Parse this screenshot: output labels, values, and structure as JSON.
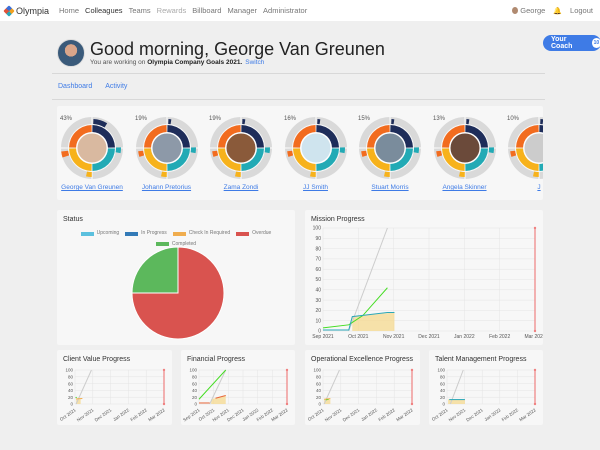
{
  "nav": {
    "brand": "Olympia",
    "items": [
      {
        "label": "Home"
      },
      {
        "label": "Colleagues",
        "active": true
      },
      {
        "label": "Teams"
      },
      {
        "label": "Rewards",
        "disabled": true
      },
      {
        "label": "Billboard"
      },
      {
        "label": "Manager"
      },
      {
        "label": "Administrator"
      }
    ],
    "user": "George",
    "logout": "Logout"
  },
  "coach": {
    "label": "Your Coach",
    "count": "10"
  },
  "header": {
    "greeting": "Good morning, George Van Greunen",
    "working_prefix": "You are working on",
    "goal": "Olympia Company Goals 2021.",
    "switch": "Switch"
  },
  "tabs": [
    {
      "label": "Dashboard"
    },
    {
      "label": "Activity"
    }
  ],
  "people": [
    {
      "name": "George Van Greunen",
      "score": "43%",
      "photo": "#d9b9a0"
    },
    {
      "name": "Johann Pretorius",
      "score": "19%",
      "photo": "#8d99a8"
    },
    {
      "name": "Zama Zondi",
      "score": "19%",
      "photo": "#8a5a3a"
    },
    {
      "name": "JJ Smith",
      "score": "16%",
      "photo": "#cfe4ee"
    },
    {
      "name": "Stuart Morris",
      "score": "15%",
      "photo": "#7a8c9c"
    },
    {
      "name": "Angela Skinner",
      "score": "13%",
      "photo": "#6b4a3a"
    },
    {
      "name": "J",
      "score": "10%",
      "photo": "#ccc"
    }
  ],
  "ring_colors": {
    "orange": "#f26c1f",
    "navy": "#1e2d5a",
    "teal": "#22aab5",
    "yellow": "#f7b21b",
    "grey": "#d9d9d9"
  },
  "status": {
    "title": "Status",
    "chart_data": {
      "type": "pie",
      "legend": [
        {
          "label": "Upcoming",
          "color": "#5bc0de"
        },
        {
          "label": "In Progress",
          "color": "#337ab7"
        },
        {
          "label": "Check In Required",
          "color": "#f0ad4e"
        },
        {
          "label": "Overdue",
          "color": "#d9534f"
        },
        {
          "label": "Completed",
          "color": "#5cb85c"
        }
      ],
      "slices": [
        {
          "label": "Overdue",
          "value": 75,
          "color": "#d9534f"
        },
        {
          "label": "Completed",
          "value": 25,
          "color": "#5cb85c"
        }
      ]
    }
  },
  "charts": [
    {
      "title": "Mission Progress",
      "chart_data": {
        "type": "line",
        "ylim": [
          0,
          100
        ],
        "yticks": [
          0,
          10,
          20,
          30,
          40,
          50,
          60,
          70,
          80,
          90,
          100
        ],
        "xticks": [
          "Sep 2021",
          "Oct 2021",
          "Nov 2021",
          "Dec 2021",
          "Jan 2022",
          "Feb 2022",
          "Mar 2022"
        ],
        "xrange": [
          "2021-09-01",
          "2022-03-01"
        ],
        "area": {
          "x": [
            "2021-09-26",
            "2021-09-26",
            "2021-11-01",
            "2021-11-01"
          ],
          "y": [
            0,
            14,
            18,
            0
          ]
        },
        "series": [
          {
            "color": "#cccccc",
            "x": [
              "2021-09-23",
              "2021-10-26"
            ],
            "y": [
              0,
              100
            ]
          },
          {
            "color": "#44dd22",
            "x": [
              "2021-09-01",
              "2021-09-23",
              "2021-10-05",
              "2021-10-26"
            ],
            "y": [
              3,
              6,
              15,
              42
            ]
          },
          {
            "color": "#2aa7b8",
            "x": [
              "2021-09-01",
              "2021-09-23",
              "2021-09-26",
              "2021-10-26",
              "2021-11-01"
            ],
            "y": [
              1,
              1,
              14,
              18,
              18
            ]
          }
        ],
        "deadline": "2022-03-01"
      }
    },
    {
      "title": "Client Value Progress",
      "chart_data": {
        "type": "line",
        "ylim": [
          0,
          100
        ],
        "yticks": [
          0,
          20,
          40,
          60,
          80,
          100
        ],
        "xticks": [
          "Oct 2021",
          "Nov 2021",
          "Dec 2021",
          "Jan 2022",
          "Feb 2022",
          "Mar 2022"
        ],
        "xrange": [
          "2021-09-25",
          "2022-03-01"
        ],
        "area": {
          "x": [
            "2021-09-27",
            "2021-09-27",
            "2021-10-05",
            "2021-10-05"
          ],
          "y": [
            0,
            16,
            16,
            0
          ]
        },
        "series": [
          {
            "color": "#cccccc",
            "x": [
              "2021-09-27",
              "2021-10-24"
            ],
            "y": [
              0,
              100
            ]
          },
          {
            "color": "#44dd22",
            "x": [
              "2021-09-26",
              "2021-09-28"
            ],
            "y": [
              18,
              20
            ]
          },
          {
            "color": "#f0ad4e",
            "x": [
              "2021-09-27",
              "2021-10-08"
            ],
            "y": [
              15,
              16
            ]
          }
        ],
        "deadline": "2022-03-01"
      }
    },
    {
      "title": "Financial Progress",
      "chart_data": {
        "type": "line",
        "ylim": [
          0,
          100
        ],
        "yticks": [
          0,
          20,
          40,
          60,
          80,
          100
        ],
        "xticks": [
          "Sep 2021",
          "Oct 2021",
          "Nov 2021",
          "Dec 2021",
          "Jan 2022",
          "Feb 2022",
          "Mar 2022"
        ],
        "xrange": [
          "2021-09-01",
          "2022-03-01"
        ],
        "area": {
          "x": [
            "2021-09-26",
            "2021-09-26",
            "2021-10-26",
            "2021-10-26"
          ],
          "y": [
            0,
            14,
            25,
            0
          ]
        },
        "series": [
          {
            "color": "#cccccc",
            "x": [
              "2021-09-23",
              "2021-10-26"
            ],
            "y": [
              0,
              100
            ]
          },
          {
            "color": "#44dd22",
            "x": [
              "2021-09-01",
              "2021-10-26"
            ],
            "y": [
              14,
              100
            ]
          },
          {
            "color": "#e8673a",
            "x": [
              "2021-09-01",
              "2021-09-23"
            ],
            "y": [
              3,
              3
            ]
          },
          {
            "color": "#e8673a",
            "x": [
              "2021-10-05",
              "2021-10-26"
            ],
            "y": [
              17,
              25
            ]
          }
        ],
        "deadline": "2022-03-01"
      }
    },
    {
      "title": "Operational Excellence Progress",
      "chart_data": {
        "type": "line",
        "ylim": [
          0,
          100
        ],
        "yticks": [
          0,
          20,
          40,
          60,
          80,
          100
        ],
        "xticks": [
          "Oct 2021",
          "Nov 2021",
          "Dec 2021",
          "Jan 2022",
          "Feb 2022",
          "Mar 2022"
        ],
        "xrange": [
          "2021-09-25",
          "2022-03-01"
        ],
        "area": {
          "x": [
            "2021-09-27",
            "2021-09-27",
            "2021-10-08",
            "2021-10-08"
          ],
          "y": [
            0,
            14,
            16,
            0
          ]
        },
        "series": [
          {
            "color": "#cccccc",
            "x": [
              "2021-09-27",
              "2021-10-24"
            ],
            "y": [
              0,
              100
            ]
          },
          {
            "color": "#44dd22",
            "x": [
              "2021-09-30",
              "2021-10-05"
            ],
            "y": [
              12,
              14
            ]
          },
          {
            "color": "#f0ad4e",
            "x": [
              "2021-09-27",
              "2021-10-08"
            ],
            "y": [
              14,
              16
            ]
          }
        ],
        "deadline": "2022-03-01"
      }
    },
    {
      "title": "Talent Management Progress",
      "chart_data": {
        "type": "line",
        "ylim": [
          0,
          100
        ],
        "yticks": [
          0,
          20,
          40,
          60,
          80,
          100
        ],
        "xticks": [
          "Oct 2021",
          "Nov 2021",
          "Dec 2021",
          "Jan 2022",
          "Feb 2022",
          "Mar 2022"
        ],
        "xrange": [
          "2021-09-25",
          "2022-03-01"
        ],
        "area": {
          "x": [
            "2021-09-27",
            "2021-09-27",
            "2021-10-27",
            "2021-10-27"
          ],
          "y": [
            0,
            14,
            14,
            0
          ]
        },
        "series": [
          {
            "color": "#cccccc",
            "x": [
              "2021-10-01",
              "2021-10-24"
            ],
            "y": [
              0,
              100
            ]
          },
          {
            "color": "#2aa7b8",
            "x": [
              "2021-09-29",
              "2021-10-27"
            ],
            "y": [
              13,
              13
            ]
          }
        ],
        "deadline": "2022-03-01"
      }
    }
  ]
}
